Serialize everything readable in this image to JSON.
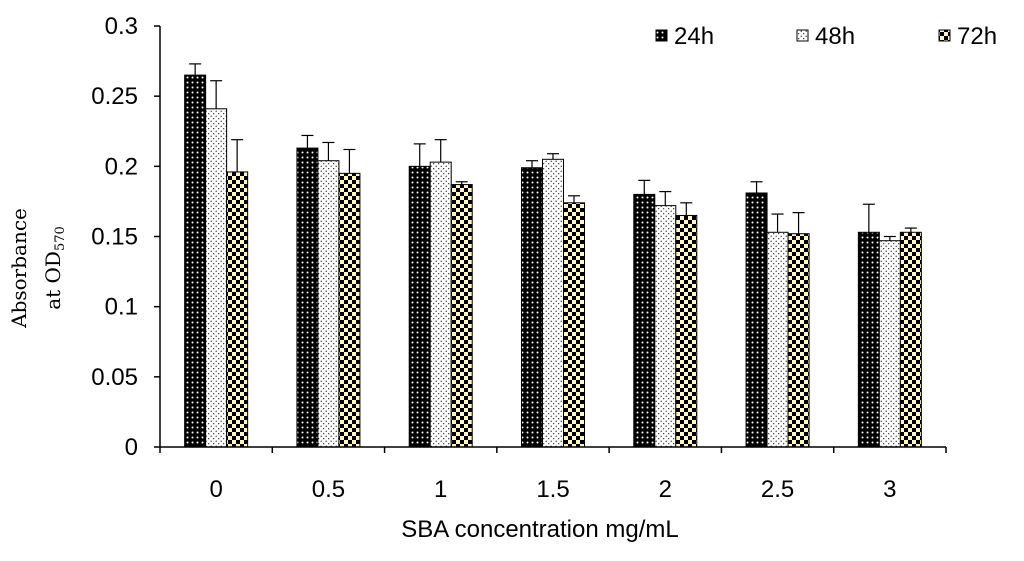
{
  "chart_data": {
    "type": "bar",
    "title": "",
    "xlabel": "SBA concentration mg/mL",
    "ylabel_line1": "Absorbance",
    "ylabel_line2_prefix": "at OD",
    "ylabel_line2_sub": "570",
    "categories": [
      "0",
      "0.5",
      "1",
      "1.5",
      "2",
      "2.5",
      "3"
    ],
    "ylim": [
      0,
      0.3
    ],
    "yticks": [
      0,
      0.05,
      0.1,
      0.15,
      0.2,
      0.25,
      0.3
    ],
    "ytick_labels": [
      "0",
      "0.05",
      "0.1",
      "0.15",
      "0.2",
      "0.25",
      "0.3"
    ],
    "grid": false,
    "legend_position": "top-right",
    "series": [
      {
        "name": "24h",
        "pattern": "dark-dots",
        "values": [
          0.265,
          0.213,
          0.2,
          0.199,
          0.18,
          0.181,
          0.153
        ],
        "errors": [
          0.008,
          0.009,
          0.016,
          0.005,
          0.01,
          0.008,
          0.02
        ]
      },
      {
        "name": "48h",
        "pattern": "light-dots",
        "values": [
          0.241,
          0.204,
          0.203,
          0.205,
          0.172,
          0.153,
          0.147
        ],
        "errors": [
          0.02,
          0.013,
          0.016,
          0.004,
          0.01,
          0.013,
          0.003
        ]
      },
      {
        "name": "72h",
        "pattern": "checker",
        "values": [
          0.196,
          0.195,
          0.187,
          0.174,
          0.165,
          0.152,
          0.153
        ],
        "errors": [
          0.023,
          0.017,
          0.002,
          0.005,
          0.009,
          0.015,
          0.003
        ]
      }
    ]
  }
}
